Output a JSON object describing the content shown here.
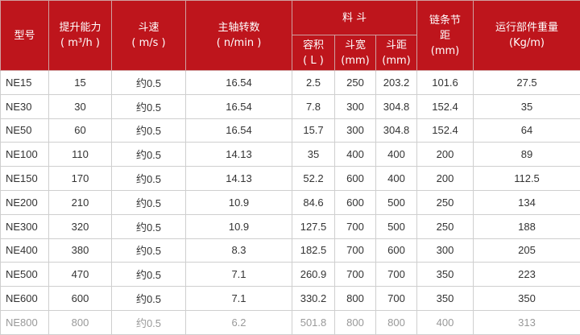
{
  "header": {
    "model": "型号",
    "capacity": [
      "提升能力",
      "( m³/h )"
    ],
    "speed": [
      "斗速",
      "( m/s )"
    ],
    "rpm": [
      "主轴转数",
      "( n/min )"
    ],
    "bucket": "料 斗",
    "volume": [
      "容积",
      "( L )"
    ],
    "width": [
      "斗宽",
      "(mm)"
    ],
    "pitch": [
      "斗距",
      "(mm)"
    ],
    "chain": [
      "链条节",
      "距",
      "(mm)"
    ],
    "weight": [
      "运行部件重量",
      "(Kg/m)"
    ]
  },
  "rows": [
    [
      "NE15",
      "15",
      "约0.5",
      "16.54",
      "2.5",
      "250",
      "203.2",
      "101.6",
      "27.5"
    ],
    [
      "NE30",
      "30",
      "约0.5",
      "16.54",
      "7.8",
      "300",
      "304.8",
      "152.4",
      "35"
    ],
    [
      "NE50",
      "60",
      "约0.5",
      "16.54",
      "15.7",
      "300",
      "304.8",
      "152.4",
      "64"
    ],
    [
      "NE100",
      "110",
      "约0.5",
      "14.13",
      "35",
      "400",
      "400",
      "200",
      "89"
    ],
    [
      "NE150",
      "170",
      "约0.5",
      "14.13",
      "52.2",
      "600",
      "400",
      "200",
      "112.5"
    ],
    [
      "NE200",
      "210",
      "约0.5",
      "10.9",
      "84.6",
      "600",
      "500",
      "250",
      "134"
    ],
    [
      "NE300",
      "320",
      "约0.5",
      "10.9",
      "127.5",
      "700",
      "500",
      "250",
      "188"
    ],
    [
      "NE400",
      "380",
      "约0.5",
      "8.3",
      "182.5",
      "700",
      "600",
      "300",
      "205"
    ],
    [
      "NE500",
      "470",
      "约0.5",
      "7.1",
      "260.9",
      "700",
      "700",
      "350",
      "223"
    ],
    [
      "NE600",
      "600",
      "约0.5",
      "7.1",
      "330.2",
      "800",
      "700",
      "350",
      "350"
    ],
    [
      "NE800",
      "800",
      "约0.5",
      "6.2",
      "501.8",
      "800",
      "800",
      "400",
      "313"
    ]
  ],
  "colors": {
    "header_bg": "#be151c"
  }
}
